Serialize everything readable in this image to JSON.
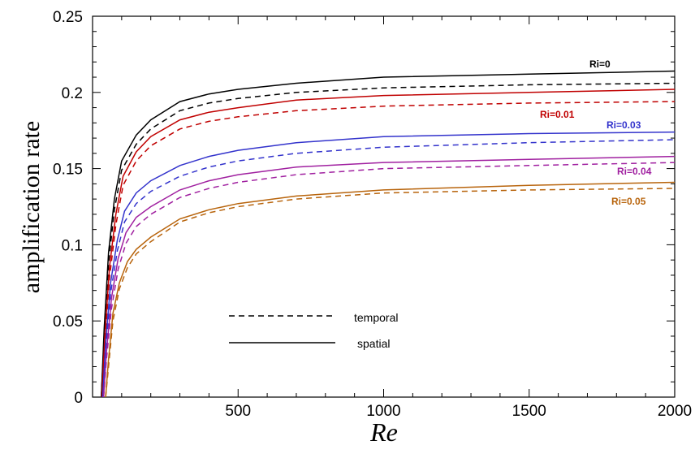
{
  "chart_data": {
    "type": "line",
    "xlabel": "Re",
    "ylabel": "amplification rate",
    "xlim": [
      0,
      2000
    ],
    "ylim": [
      0,
      0.25
    ],
    "xticks": [
      500,
      1000,
      1500,
      2000
    ],
    "xtick_labels": [
      "500",
      "1000",
      "1500",
      "2000"
    ],
    "yticks": [
      0,
      0.05,
      0.1,
      0.15,
      0.2,
      0.25
    ],
    "ytick_labels": [
      "0",
      "0.05",
      "0.1",
      "0.15",
      "0.2",
      "0.25"
    ],
    "grid": false,
    "legend": {
      "placement": "lower-middle",
      "entries": [
        {
          "label": "temporal",
          "style": "dashed"
        },
        {
          "label": "spatial",
          "style": "solid"
        }
      ]
    },
    "groups": [
      {
        "label": "Ri=0",
        "color": "#000000",
        "x": [
          30,
          40,
          55,
          75,
          100,
          150,
          200,
          300,
          400,
          500,
          700,
          1000,
          1500,
          2000
        ],
        "spatial": [
          0.0,
          0.045,
          0.095,
          0.13,
          0.155,
          0.172,
          0.182,
          0.194,
          0.199,
          0.202,
          0.206,
          0.21,
          0.212,
          0.214
        ],
        "temporal": [
          0.0,
          0.04,
          0.088,
          0.123,
          0.149,
          0.166,
          0.176,
          0.188,
          0.193,
          0.196,
          0.2,
          0.203,
          0.205,
          0.206
        ]
      },
      {
        "label": "Ri=0.01",
        "color": "#c00000",
        "x": [
          32,
          42,
          58,
          80,
          105,
          150,
          200,
          300,
          400,
          500,
          700,
          1000,
          1500,
          2000
        ],
        "spatial": [
          0.0,
          0.04,
          0.085,
          0.12,
          0.145,
          0.161,
          0.171,
          0.182,
          0.187,
          0.19,
          0.195,
          0.198,
          0.2,
          0.202
        ],
        "temporal": [
          0.0,
          0.035,
          0.078,
          0.113,
          0.139,
          0.155,
          0.165,
          0.176,
          0.181,
          0.184,
          0.188,
          0.191,
          0.193,
          0.194
        ]
      },
      {
        "label": "Ri=0.03",
        "color": "#3333cc",
        "x": [
          35,
          45,
          62,
          85,
          110,
          150,
          200,
          300,
          400,
          500,
          700,
          1000,
          1500,
          2000
        ],
        "spatial": [
          0.0,
          0.035,
          0.075,
          0.103,
          0.122,
          0.134,
          0.142,
          0.152,
          0.158,
          0.162,
          0.167,
          0.171,
          0.173,
          0.174
        ],
        "temporal": [
          0.0,
          0.03,
          0.068,
          0.096,
          0.115,
          0.127,
          0.135,
          0.145,
          0.151,
          0.155,
          0.16,
          0.164,
          0.167,
          0.169
        ]
      },
      {
        "label": "Ri=0.04",
        "color": "#a020a0",
        "x": [
          38,
          48,
          65,
          88,
          115,
          150,
          200,
          300,
          400,
          500,
          700,
          1000,
          1500,
          2000
        ],
        "spatial": [
          0.0,
          0.03,
          0.065,
          0.091,
          0.108,
          0.118,
          0.125,
          0.136,
          0.142,
          0.146,
          0.151,
          0.154,
          0.156,
          0.158
        ],
        "temporal": [
          0.0,
          0.025,
          0.058,
          0.084,
          0.101,
          0.112,
          0.12,
          0.131,
          0.137,
          0.141,
          0.146,
          0.15,
          0.152,
          0.154
        ]
      },
      {
        "label": "Ri=0.05",
        "color": "#b8640c",
        "x": [
          45,
          55,
          70,
          92,
          120,
          150,
          200,
          300,
          400,
          500,
          700,
          1000,
          1500,
          2000
        ],
        "spatial": [
          0.0,
          0.025,
          0.055,
          0.075,
          0.089,
          0.097,
          0.105,
          0.117,
          0.123,
          0.127,
          0.132,
          0.136,
          0.139,
          0.141
        ],
        "temporal": [
          0.0,
          0.02,
          0.05,
          0.071,
          0.085,
          0.094,
          0.102,
          0.115,
          0.121,
          0.125,
          0.13,
          0.134,
          0.136,
          0.137
        ]
      }
    ]
  }
}
